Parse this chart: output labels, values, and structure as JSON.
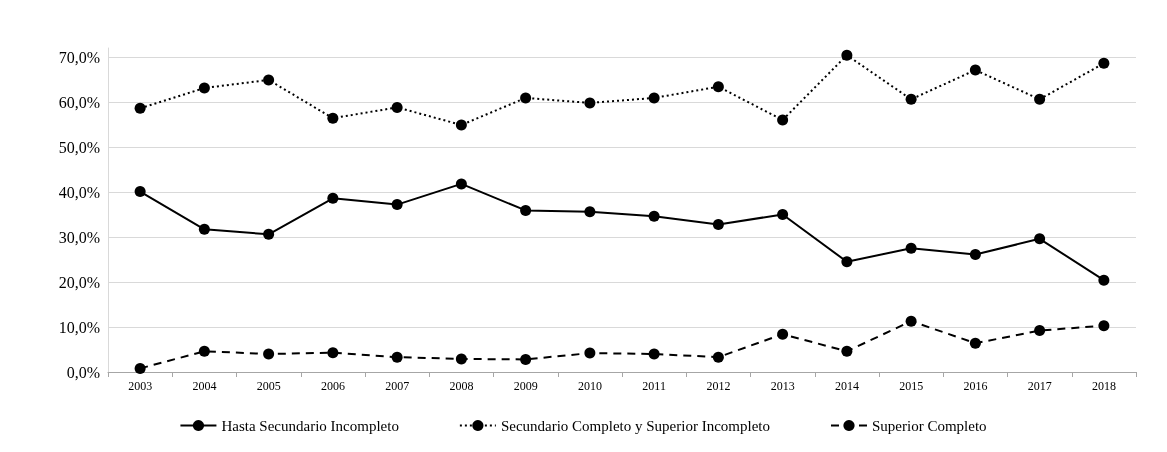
{
  "chart_data": {
    "type": "line",
    "categories": [
      "2003",
      "2004",
      "2005",
      "2006",
      "2007",
      "2008",
      "2009",
      "2010",
      "2011",
      "2012",
      "2013",
      "2014",
      "2015",
      "2016",
      "2017",
      "2018"
    ],
    "series": [
      {
        "name": "Hasta Secundario Incompleto",
        "color": "#000000",
        "line_style": "solid",
        "values": [
          40.1,
          31.7,
          30.6,
          38.6,
          37.2,
          41.8,
          35.9,
          35.6,
          34.6,
          32.8,
          35.0,
          24.5,
          27.5,
          26.1,
          29.6,
          20.4
        ]
      },
      {
        "name": "Secundario Completo y Superior Incompleto",
        "color": "#000000",
        "line_style": "dotted",
        "values": [
          58.6,
          63.1,
          64.9,
          56.4,
          58.8,
          54.9,
          60.9,
          59.8,
          60.9,
          63.4,
          56.0,
          70.4,
          60.6,
          67.1,
          60.6,
          68.6
        ]
      },
      {
        "name": "Superior Completo",
        "color": "#000000",
        "line_style": "dashed",
        "values": [
          0.8,
          4.6,
          4.0,
          4.3,
          3.3,
          2.9,
          2.8,
          4.2,
          4.0,
          3.3,
          8.4,
          4.6,
          11.3,
          6.4,
          9.2,
          10.3
        ]
      }
    ],
    "ylim": [
      0,
      72
    ],
    "yticks": [
      {
        "value": 0,
        "label": "0,0%"
      },
      {
        "value": 10,
        "label": "10,0%"
      },
      {
        "value": 20,
        "label": "20,0%"
      },
      {
        "value": 30,
        "label": "30,0%"
      },
      {
        "value": 40,
        "label": "40,0%"
      },
      {
        "value": 50,
        "label": "50,0%"
      },
      {
        "value": 60,
        "label": "60,0%"
      },
      {
        "value": 70,
        "label": "70,0%"
      }
    ],
    "grid": "y",
    "legend": "bottom",
    "marker": "circle"
  }
}
